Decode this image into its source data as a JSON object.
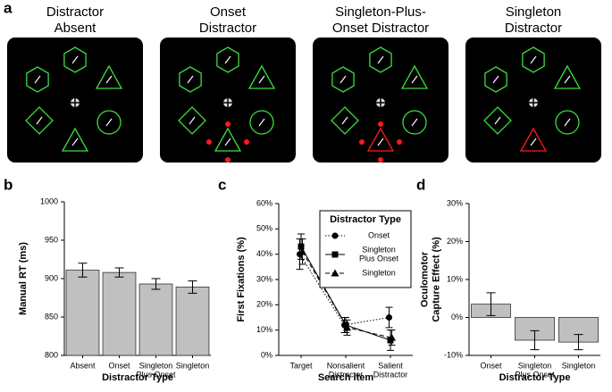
{
  "panel_labels": [
    "a",
    "b",
    "c",
    "d"
  ],
  "stimuli": {
    "titles": [
      [
        "Distractor",
        "Absent"
      ],
      [
        "Onset",
        "Distractor"
      ],
      [
        "Singleton-Plus-",
        "Onset Distractor"
      ],
      [
        "Singleton",
        "Distractor"
      ]
    ]
  },
  "chart_data": [
    {
      "type": "bar",
      "ylabel": "Manual RT (ms)",
      "xlabel": "Distractor Type",
      "categories": [
        "Absent",
        "Onset",
        [
          "Singleton",
          "Plus Onset"
        ],
        "Singleton"
      ],
      "values": [
        911,
        908,
        893,
        889
      ],
      "errors": [
        9,
        6,
        7,
        8
      ],
      "color": "#c0c0c0",
      "ylim": [
        800,
        1000
      ],
      "yticks": [
        800,
        850,
        900,
        950,
        1000
      ]
    },
    {
      "type": "line",
      "ylabel": "First Fixations (%)",
      "xlabel": "Search Item",
      "categories": [
        "Target",
        [
          "Nonsalient",
          "Distractor"
        ],
        [
          "Salient",
          "Distractor"
        ]
      ],
      "legend_title": "Distractor Type",
      "series": [
        {
          "name": "Onset",
          "marker": "circle",
          "linestyle": "dotted",
          "color": "#000000",
          "values": [
            40,
            12,
            15
          ],
          "errors": [
            6,
            3,
            4
          ]
        },
        {
          "name": [
            "Singleton",
            "Plus Onset"
          ],
          "marker": "square",
          "linestyle": "solid",
          "color": "#000000",
          "values": [
            43,
            12,
            6
          ],
          "errors": [
            5,
            3,
            4
          ]
        },
        {
          "name": "Singleton",
          "marker": "triangle",
          "linestyle": "dashed",
          "color": "#000000",
          "values": [
            41,
            11,
            7
          ],
          "errors": [
            5,
            3,
            3
          ]
        }
      ],
      "ylim": [
        0,
        60
      ],
      "yticks": [
        {
          "value": 0,
          "label": "0%"
        },
        {
          "value": 10,
          "label": "10%"
        },
        {
          "value": 20,
          "label": "20%"
        },
        {
          "value": 30,
          "label": "30%"
        },
        {
          "value": 40,
          "label": "40%"
        },
        {
          "value": 50,
          "label": "50%"
        },
        {
          "value": 60,
          "label": "60%"
        }
      ]
    },
    {
      "type": "bar",
      "ylabel": [
        "Oculomotor",
        "Capture Effect (%)"
      ],
      "xlabel": "Distractor Type",
      "categories": [
        "Onset",
        [
          "Singleton",
          "Plus Onset"
        ],
        "Singleton"
      ],
      "values": [
        3.5,
        -6,
        -6.5
      ],
      "errors": [
        3,
        2.5,
        2
      ],
      "color": "#c0c0c0",
      "ylim": [
        -10,
        30
      ],
      "yticks": [
        {
          "value": -10,
          "label": "-10%"
        },
        {
          "value": 0,
          "label": "0%"
        },
        {
          "value": 10,
          "label": "10%"
        },
        {
          "value": 20,
          "label": "20%"
        },
        {
          "value": 30,
          "label": "30%"
        }
      ]
    }
  ]
}
